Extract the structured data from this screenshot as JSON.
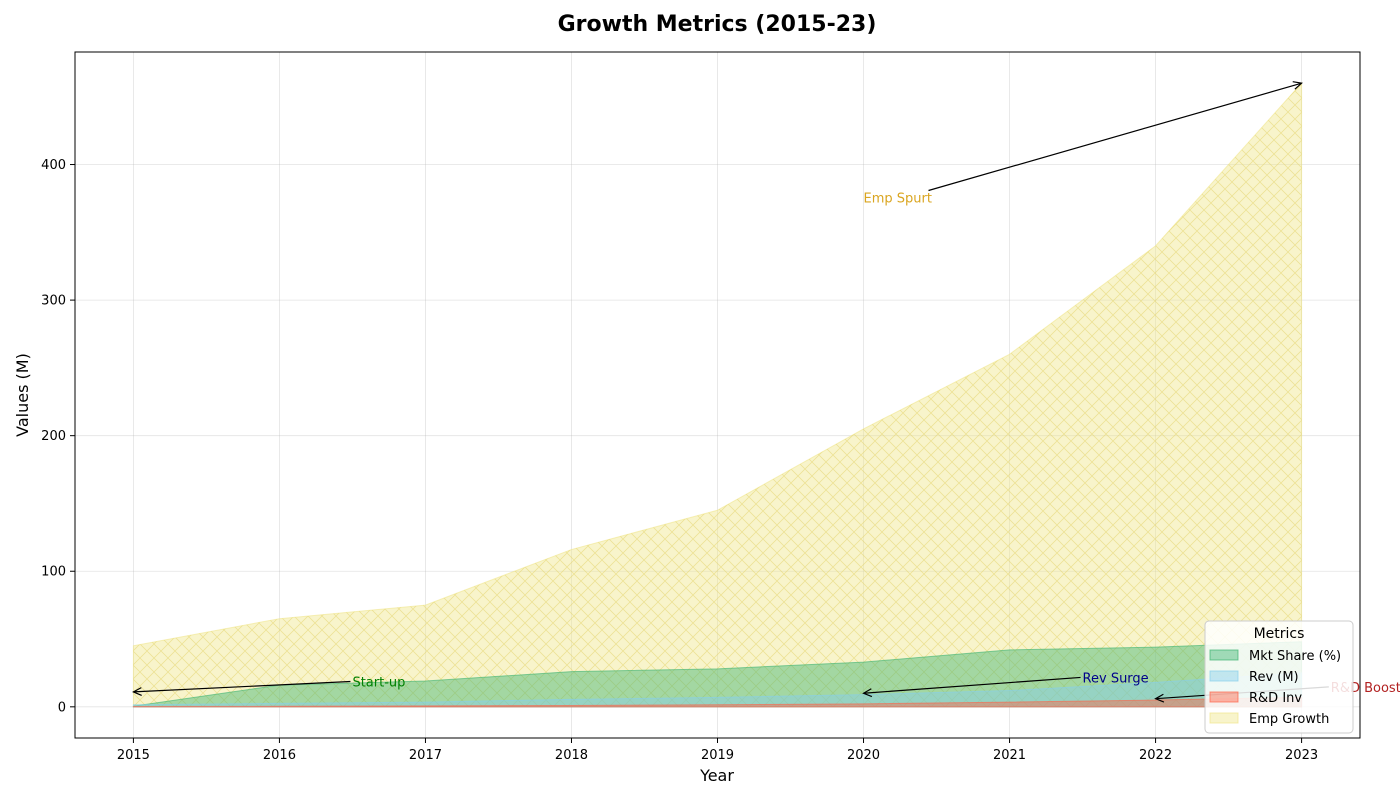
{
  "chart_data": {
    "type": "area",
    "title": "Growth Metrics (2015-23)",
    "xlabel": "Year",
    "ylabel": "Values (M)",
    "x": [
      2015,
      2016,
      2017,
      2018,
      2019,
      2020,
      2021,
      2022,
      2023
    ],
    "xlim": [
      2014.6,
      2023.4
    ],
    "ylim": [
      -23,
      483
    ],
    "yticks": [
      0,
      100,
      200,
      300,
      400
    ],
    "grid": true,
    "legend": {
      "title": "Metrics",
      "placement": "bottom-right"
    },
    "series": [
      {
        "name": "Mkt Share (%)",
        "color": "#3cb371",
        "values": [
          0.5,
          16,
          19,
          26,
          28,
          33,
          42,
          44,
          48
        ]
      },
      {
        "name": "Rev (M)",
        "color": "#87ceeb",
        "values": [
          1.5,
          2.5,
          3.5,
          5.5,
          7,
          9,
          12,
          18,
          25
        ]
      },
      {
        "name": "R&D Inv",
        "color": "#ff6347",
        "values": [
          0.2,
          0.4,
          0.7,
          1,
          1.5,
          2.2,
          3.5,
          5,
          7
        ]
      },
      {
        "name": "Emp Growth",
        "color": "#f0e68c",
        "values": [
          45,
          65,
          75,
          116,
          145,
          205,
          260,
          340,
          460
        ]
      }
    ],
    "annotations": [
      {
        "text": "Start-up",
        "color": "#008000",
        "target": [
          2015,
          11
        ],
        "text_pos": [
          2016.5,
          15
        ]
      },
      {
        "text": "Rev Surge",
        "color": "#00008b",
        "target": [
          2020,
          10
        ],
        "text_pos": [
          2021.5,
          18
        ]
      },
      {
        "text": "R&D Boost",
        "color": "#b22222",
        "target": [
          2022,
          6
        ],
        "text_pos": [
          2023.2,
          11
        ]
      },
      {
        "text": "Emp Spurt",
        "color": "#daa520",
        "target": [
          2023,
          460
        ],
        "text_pos": [
          2020,
          372
        ]
      }
    ]
  }
}
